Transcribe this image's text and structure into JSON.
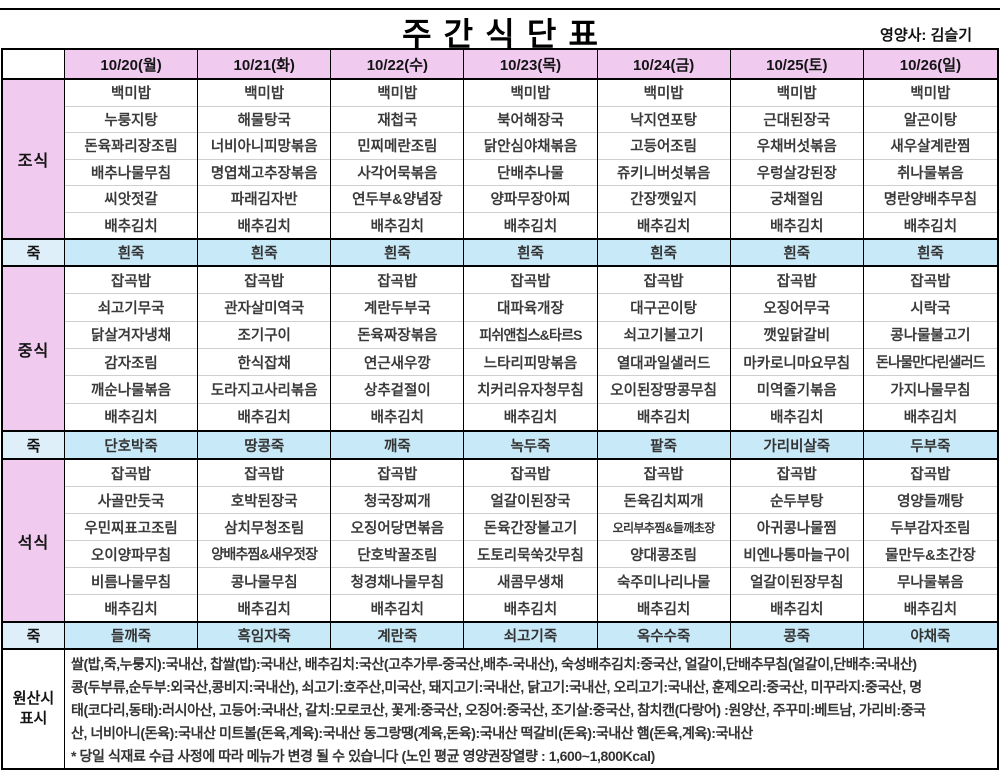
{
  "title": "주간식단표",
  "nutritionist": "영양사: 김슬기",
  "days": [
    "10/20(월)",
    "10/21(화)",
    "10/22(수)",
    "10/23(목)",
    "10/24(금)",
    "10/25(토)",
    "10/26(일)"
  ],
  "sections": [
    {
      "id": "breakfast",
      "label": "조식",
      "type": "meal",
      "columns": [
        [
          "백미밥",
          "누룽지탕",
          "돈육꽈리장조림",
          "배추나물무침",
          "씨앗젓갈",
          "배추김치"
        ],
        [
          "백미밥",
          "해물탕국",
          "너비아니피망볶음",
          "명엽채고추장볶음",
          "파래김자반",
          "배추김치"
        ],
        [
          "백미밥",
          "재첩국",
          "민찌메란조림",
          "사각어묵볶음",
          "연두부&양념장",
          "배추김치"
        ],
        [
          "백미밥",
          "북어해장국",
          "닭안심야채볶음",
          "단배추나물",
          "양파무장아찌",
          "배추김치"
        ],
        [
          "백미밥",
          "낙지연포탕",
          "고등어조림",
          "쥬키니버섯볶음",
          "간장깻잎지",
          "배추김치"
        ],
        [
          "백미밥",
          "근대된장국",
          "우채버섯볶음",
          "우렁살강된장",
          "궁채절임",
          "배추김치"
        ],
        [
          "백미밥",
          "알곤이탕",
          "새우살계란찜",
          "취나물볶음",
          "명란양배추무침",
          "배추김치"
        ]
      ]
    },
    {
      "id": "porridge1",
      "label": "죽",
      "type": "porridge",
      "values": [
        "흰죽",
        "흰죽",
        "흰죽",
        "흰죽",
        "흰죽",
        "흰죽",
        "흰죽"
      ]
    },
    {
      "id": "lunch",
      "label": "중식",
      "type": "meal",
      "columns": [
        [
          "잡곡밥",
          "쇠고기무국",
          "닭살겨자냉채",
          "감자조림",
          "깨순나물볶음",
          "배추김치"
        ],
        [
          "잡곡밥",
          "관자살미역국",
          "조기구이",
          "한식잡채",
          "도라지고사리볶음",
          "배추김치"
        ],
        [
          "잡곡밥",
          "계란두부국",
          "돈육짜장볶음",
          "연근새우깡",
          "상추겉절이",
          "배추김치"
        ],
        [
          "잡곡밥",
          "대파육개장",
          "피쉬앤칩스&타르S",
          "느타리피망볶음",
          "치커리유자청무침",
          "배추김치"
        ],
        [
          "잡곡밥",
          "대구곤이탕",
          "쇠고기불고기",
          "열대과일샐러드",
          "오이된장땅콩무침",
          "배추김치"
        ],
        [
          "잡곡밥",
          "오징어무국",
          "깻잎닭갈비",
          "마카로니마요무침",
          "미역줄기볶음",
          "배추김치"
        ],
        [
          "잡곡밥",
          "시락국",
          "콩나물불고기",
          "돈나물만다린샐러드",
          "가지나물무침",
          "배추김치"
        ]
      ]
    },
    {
      "id": "porridge2",
      "label": "죽",
      "type": "porridge",
      "values": [
        "단호박죽",
        "땅콩죽",
        "깨죽",
        "녹두죽",
        "팥죽",
        "가리비살죽",
        "두부죽"
      ]
    },
    {
      "id": "dinner",
      "label": "석식",
      "type": "meal",
      "columns": [
        [
          "잡곡밥",
          "사골만둣국",
          "우민찌표고조림",
          "오이양파무침",
          "비름나물무침",
          "배추김치"
        ],
        [
          "잡곡밥",
          "호박된장국",
          "삼치무청조림",
          "양배추찜&새우젓장",
          "콩나물무침",
          "배추김치"
        ],
        [
          "잡곡밥",
          "청국장찌개",
          "오징어당면볶음",
          "단호박꿀조림",
          "청경채나물무침",
          "배추김치"
        ],
        [
          "잡곡밥",
          "얼갈이된장국",
          "돈육간장불고기",
          "도토리묵쑥갓무침",
          "새콤무생채",
          "배추김치"
        ],
        [
          "잡곡밥",
          "돈육김치찌개",
          "오리부추찜&들깨초장",
          "양대콩조림",
          "숙주미나리나물",
          "배추김치"
        ],
        [
          "잡곡밥",
          "순두부탕",
          "아귀콩나물찜",
          "비엔나통마늘구이",
          "얼갈이된장무침",
          "배추김치"
        ],
        [
          "잡곡밥",
          "영양들깨탕",
          "두부감자조림",
          "물만두&초간장",
          "무나물볶음",
          "배추김치"
        ]
      ]
    },
    {
      "id": "porridge3",
      "label": "죽",
      "type": "porridge",
      "values": [
        "들깨죽",
        "흑임자죽",
        "계란죽",
        "쇠고기죽",
        "옥수수죽",
        "콩죽",
        "야채죽"
      ]
    }
  ],
  "origin": {
    "label_lines": [
      "원산시",
      "표시"
    ],
    "lines": [
      "쌀(밥,죽,누룽지):국내산, 찹쌀(밥):국내산, 배추김치:국산(고추가루-중국산,배추-국내산), 숙성배추김치:중국산, 얼갈이,단배추무침(얼갈이,단배추:국내산)",
      "콩(두부류,순두부:외국산,콩비지:국내산), 쇠고기:호주산,미국산, 돼지고기:국내산, 닭고기:국내산, 오리고기:국내산, 훈제오리:중국산, 미꾸라지:중국산, 명",
      "태(코다리,동태):러시아산, 고등어:국내산, 갈치:모로코산, 꽃게:중국산, 오징어:중국산, 조기살:중국산, 참치캔(다랑어) :원양산, 주꾸미:베트남, 가리비:중국",
      "산, 너비아니(돈육):국내산 미트볼(돈육,계육):국내산 동그랑땡(계육,돈육):국내산 떡갈비(돈육):국내산 햄(돈육,계육):국내산",
      "* 당일 식재료 수급 사정에 따라 메뉴가 변경 될 수 있습니다 (노인 평균 영양권장열량 : 1,600~1,800Kcal)"
    ]
  },
  "colors": {
    "header_pink": "#F1CBEF",
    "porridge_blue": "#C8E9F7",
    "porridge_label_blue": "#DEEFFA",
    "separator_gray": "#CFCFCF"
  }
}
